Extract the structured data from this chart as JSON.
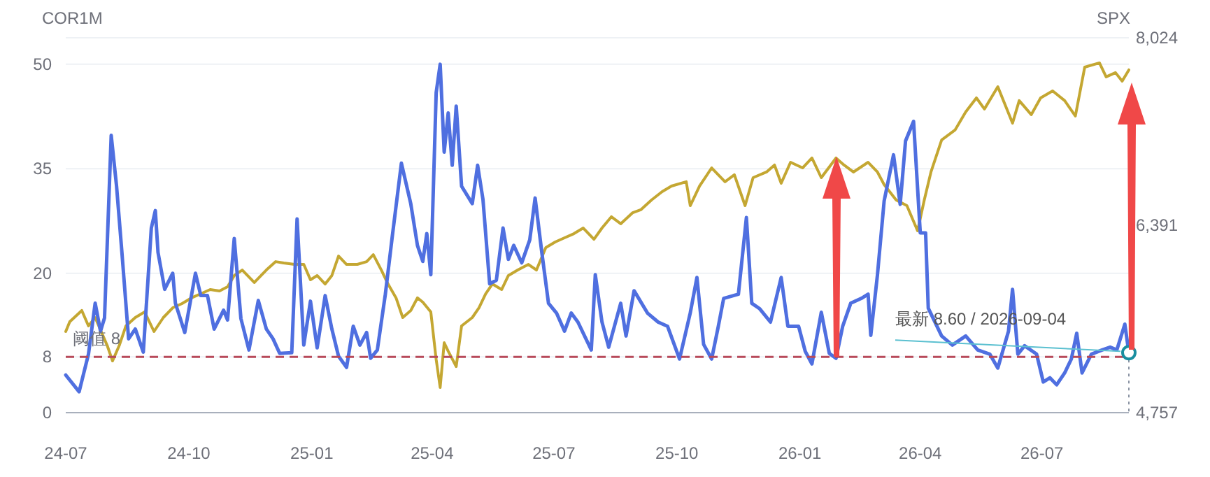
{
  "chart_data": {
    "type": "line",
    "ylabel": "COR1M",
    "y2label": "SPX",
    "xlim": [
      "2024-07-01",
      "2026-09-04"
    ],
    "xticks": [
      {
        "value": "2024-07-01",
        "label": "24-07"
      },
      {
        "value": "2024-10-01",
        "label": "24-10"
      },
      {
        "value": "2025-01-01",
        "label": "25-01"
      },
      {
        "value": "2025-04-01",
        "label": "25-04"
      },
      {
        "value": "2025-07-01",
        "label": "25-07"
      },
      {
        "value": "2025-10-01",
        "label": "25-10"
      },
      {
        "value": "2026-01-01",
        "label": "26-01"
      },
      {
        "value": "2026-04-01",
        "label": "26-04"
      },
      {
        "value": "2026-07-01",
        "label": "26-07"
      }
    ],
    "ylim": [
      0,
      53.8
    ],
    "yticks": [
      0,
      8,
      20,
      35,
      50
    ],
    "y2lim": [
      4757,
      8024
    ],
    "y2ticks": [
      {
        "value": 4757,
        "label": "4,757"
      },
      {
        "value": 6391,
        "label": "6,391"
      },
      {
        "value": 8024,
        "label": "8,024"
      }
    ],
    "grid": "y",
    "ref_lines": [
      {
        "axis": "y",
        "value": 8,
        "label": "阈值 8",
        "color": "#b84a5a",
        "line_style": "dashed"
      }
    ],
    "annotations": [
      {
        "text": "最新 8.60 / 2026-09-04",
        "x": "2026-09-04",
        "y": 8.6
      }
    ],
    "series": [
      {
        "color": "#c4a732",
        "axis": "y2",
        "x": [
          "2024-07-01",
          "2024-07-04",
          "2024-07-13",
          "2024-07-18",
          "2024-07-23",
          "2024-08-01",
          "2024-08-05",
          "2024-08-10",
          "2024-08-15",
          "2024-08-22",
          "2024-08-29",
          "2024-09-05",
          "2024-09-12",
          "2024-09-19",
          "2024-09-26",
          "2024-10-03",
          "2024-10-10",
          "2024-10-17",
          "2024-10-24",
          "2024-10-30",
          "2024-11-04",
          "2024-11-10",
          "2024-11-19",
          "2024-11-28",
          "2024-12-05",
          "2024-12-11",
          "2024-12-19",
          "2024-12-26",
          "2024-12-31",
          "2025-01-05",
          "2025-01-11",
          "2025-01-16",
          "2025-01-21",
          "2025-01-27",
          "2025-02-04",
          "2025-02-11",
          "2025-02-16",
          "2025-02-22",
          "2025-02-27",
          "2025-03-05",
          "2025-03-10",
          "2025-03-16",
          "2025-03-21",
          "2025-03-25",
          "2025-03-31",
          "2025-04-04",
          "2025-04-07",
          "2025-04-10",
          "2025-04-13",
          "2025-04-19",
          "2025-04-23",
          "2025-05-01",
          "2025-05-06",
          "2025-05-11",
          "2025-05-16",
          "2025-05-23",
          "2025-05-28",
          "2025-06-04",
          "2025-06-12",
          "2025-06-18",
          "2025-06-25",
          "2025-07-02",
          "2025-07-09",
          "2025-07-16",
          "2025-07-23",
          "2025-07-31",
          "2025-08-06",
          "2025-08-13",
          "2025-08-20",
          "2025-08-29",
          "2025-09-04",
          "2025-09-12",
          "2025-09-20",
          "2025-09-27",
          "2025-10-08",
          "2025-10-11",
          "2025-10-18",
          "2025-10-27",
          "2025-11-06",
          "2025-11-13",
          "2025-11-21",
          "2025-11-27",
          "2025-12-07",
          "2025-12-13",
          "2025-12-18",
          "2025-12-25",
          "2026-01-03",
          "2026-01-10",
          "2026-01-17",
          "2026-01-28",
          "2026-02-03",
          "2026-02-10",
          "2026-02-21",
          "2026-02-28",
          "2026-03-05",
          "2026-03-14",
          "2026-03-22",
          "2026-03-30",
          "2026-04-04",
          "2026-04-09",
          "2026-04-17",
          "2026-04-27",
          "2026-05-05",
          "2026-05-13",
          "2026-05-19",
          "2026-05-29",
          "2026-06-09",
          "2026-06-14",
          "2026-06-23",
          "2026-06-30",
          "2026-07-09",
          "2026-07-18",
          "2026-07-26",
          "2026-08-02",
          "2026-08-13",
          "2026-08-18",
          "2026-08-25",
          "2026-08-30",
          "2026-09-04"
        ],
        "values": [
          5464,
          5549,
          5647,
          5513,
          5586,
          5342,
          5208,
          5342,
          5513,
          5586,
          5635,
          5464,
          5586,
          5671,
          5708,
          5757,
          5793,
          5830,
          5818,
          5854,
          5952,
          6000,
          5891,
          6000,
          6073,
          6061,
          6049,
          6049,
          5915,
          5952,
          5878,
          5952,
          6122,
          6049,
          6049,
          6073,
          6134,
          6000,
          5878,
          5757,
          5586,
          5647,
          5757,
          5720,
          5635,
          5220,
          4976,
          5366,
          5293,
          5159,
          5513,
          5586,
          5671,
          5793,
          5878,
          5830,
          5952,
          6000,
          6049,
          6000,
          6195,
          6244,
          6281,
          6317,
          6366,
          6268,
          6366,
          6464,
          6403,
          6500,
          6525,
          6610,
          6683,
          6732,
          6769,
          6561,
          6732,
          6890,
          6769,
          6830,
          6561,
          6805,
          6854,
          6915,
          6756,
          6939,
          6890,
          6976,
          6805,
          6976,
          6915,
          6854,
          6939,
          6854,
          6744,
          6610,
          6561,
          6342,
          6610,
          6854,
          7134,
          7220,
          7378,
          7500,
          7403,
          7597,
          7280,
          7476,
          7354,
          7500,
          7561,
          7476,
          7342,
          7768,
          7805,
          7683,
          7720,
          7646,
          7744
        ]
      },
      {
        "color": "#4f6fe0",
        "x": [
          "2024-07-01",
          "2024-07-11",
          "2024-07-18",
          "2024-07-23",
          "2024-07-27",
          "2024-07-30",
          "2024-08-04",
          "2024-08-08",
          "2024-08-12",
          "2024-08-17",
          "2024-08-22",
          "2024-08-28",
          "2024-09-03",
          "2024-09-06",
          "2024-09-08",
          "2024-09-13",
          "2024-09-19",
          "2024-09-21",
          "2024-09-28",
          "2024-10-06",
          "2024-10-10",
          "2024-10-15",
          "2024-10-20",
          "2024-10-27",
          "2024-10-30",
          "2024-11-04",
          "2024-11-09",
          "2024-11-15",
          "2024-11-22",
          "2024-11-28",
          "2024-12-03",
          "2024-12-08",
          "2024-12-17",
          "2024-12-21",
          "2024-12-26",
          "2024-12-31",
          "2025-01-05",
          "2025-01-11",
          "2025-01-16",
          "2025-01-21",
          "2025-01-27",
          "2025-02-01",
          "2025-02-06",
          "2025-02-11",
          "2025-02-14",
          "2025-02-19",
          "2025-02-25",
          "2025-03-02",
          "2025-03-09",
          "2025-03-16",
          "2025-03-21",
          "2025-03-25",
          "2025-03-28",
          "2025-03-31",
          "2025-04-04",
          "2025-04-07",
          "2025-04-10",
          "2025-04-13",
          "2025-04-16",
          "2025-04-19",
          "2025-04-23",
          "2025-05-01",
          "2025-05-05",
          "2025-05-09",
          "2025-05-14",
          "2025-05-19",
          "2025-05-24",
          "2025-05-28",
          "2025-06-01",
          "2025-06-07",
          "2025-06-13",
          "2025-06-17",
          "2025-06-22",
          "2025-06-27",
          "2025-07-03",
          "2025-07-09",
          "2025-07-14",
          "2025-07-19",
          "2025-07-29",
          "2025-08-01",
          "2025-08-06",
          "2025-08-11",
          "2025-08-20",
          "2025-08-24",
          "2025-08-30",
          "2025-09-09",
          "2025-09-17",
          "2025-09-24",
          "2025-10-03",
          "2025-10-11",
          "2025-10-16",
          "2025-10-21",
          "2025-10-27",
          "2025-11-01",
          "2025-11-05",
          "2025-11-16",
          "2025-11-22",
          "2025-11-26",
          "2025-12-02",
          "2025-12-10",
          "2025-12-18",
          "2025-12-23",
          "2025-12-31",
          "2026-01-05",
          "2026-01-10",
          "2026-01-17",
          "2026-01-23",
          "2026-01-28",
          "2026-02-02",
          "2026-02-08",
          "2026-02-16",
          "2026-02-21",
          "2026-02-23",
          "2026-02-28",
          "2026-03-05",
          "2026-03-12",
          "2026-03-17",
          "2026-03-21",
          "2026-03-27",
          "2026-04-01",
          "2026-04-05",
          "2026-04-07",
          "2026-04-17",
          "2026-04-25",
          "2026-05-05",
          "2026-05-14",
          "2026-05-23",
          "2026-05-29",
          "2026-06-06",
          "2026-06-09",
          "2026-06-13",
          "2026-06-18",
          "2026-06-27",
          "2026-07-02",
          "2026-07-07",
          "2026-07-12",
          "2026-07-18",
          "2026-07-23",
          "2026-07-27",
          "2026-07-31",
          "2026-08-07",
          "2026-08-15",
          "2026-08-21",
          "2026-08-26",
          "2026-09-01",
          "2026-09-04"
        ],
        "values": [
          5.4,
          3.0,
          8.4,
          15.7,
          11.7,
          13.6,
          39.8,
          32.5,
          23,
          10.6,
          12,
          8.7,
          26.5,
          29,
          23,
          17.7,
          20,
          15.7,
          11.5,
          20,
          16.8,
          16.8,
          12,
          14.7,
          13.3,
          25,
          13.5,
          9,
          16.1,
          12,
          10.6,
          8.5,
          8.6,
          27.8,
          9.7,
          16,
          9.3,
          16.8,
          12,
          8.1,
          6.5,
          12.4,
          9.7,
          11.5,
          7.8,
          9,
          17,
          25,
          35.8,
          30,
          24,
          21.7,
          25.7,
          19.8,
          45.9,
          50,
          37.4,
          43,
          35.5,
          44,
          32.5,
          30,
          35.5,
          30.6,
          18.5,
          19,
          26.5,
          22,
          24,
          21.5,
          24.8,
          30.8,
          23,
          15.7,
          14.3,
          11.7,
          14.3,
          13,
          9,
          19.8,
          13,
          9.4,
          15.7,
          11,
          17.5,
          14.3,
          13,
          12.4,
          7.7,
          14.3,
          19.4,
          9.8,
          7.7,
          12.4,
          16.4,
          17,
          28,
          15.7,
          14.9,
          13,
          19.4,
          12.4,
          12.4,
          8.8,
          7,
          14.4,
          8.5,
          7.8,
          12.4,
          15.7,
          16.4,
          17,
          11.1,
          19.8,
          30.4,
          37,
          29.9,
          39,
          41.8,
          25.8,
          25.8,
          15,
          11,
          9.7,
          11,
          9,
          8.4,
          6.4,
          11.7,
          17.7,
          8.4,
          9.6,
          8.4,
          4.4,
          5,
          4,
          5.7,
          7.7,
          11.4,
          5.7,
          8.4,
          9,
          9.4,
          9,
          12.7,
          8.6
        ]
      }
    ]
  }
}
